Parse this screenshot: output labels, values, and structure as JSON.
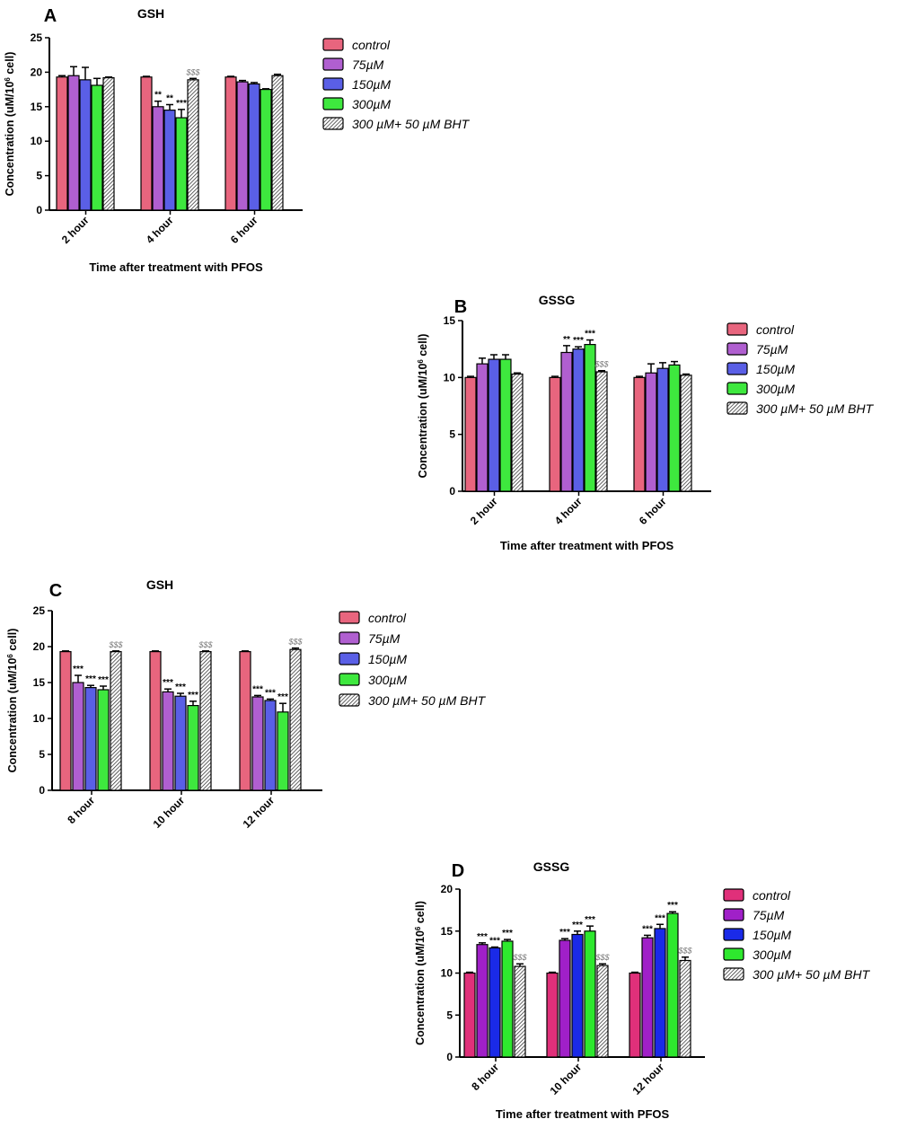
{
  "colors": {
    "control": "#e8657e",
    "75": "#b05fd0",
    "150": "#5a5fe6",
    "300": "#3ee83e",
    "bht": "#ffffff",
    "panelD_control": "#e0307a",
    "panelD_75": "#a020c8",
    "panelD_150": "#1a2ae8",
    "panelD_300": "#2ee82e",
    "axis": "#000000",
    "dollar": "#777777"
  },
  "chart_data": [
    {
      "panel": "A",
      "type": "bar",
      "title": "GSH",
      "xlabel": "Time after treatment with PFOS",
      "ylabel": "Concentration (uM/10",
      "ylabel_sup": "6",
      "ylabel_end": " cell)",
      "ylim": [
        0,
        25
      ],
      "yticks": [
        "0",
        "5",
        "10",
        "15",
        "20",
        "25"
      ],
      "ytick_values": [
        0,
        5,
        10,
        15,
        20,
        25
      ],
      "categories": [
        "2 hour",
        "4 hour",
        "6 hour"
      ],
      "legend": [
        "control",
        "75µM",
        "150µM",
        "300µM",
        "300 µM+ 50 µM BHT"
      ],
      "series": [
        {
          "name": "control",
          "values": [
            19.3,
            19.3,
            19.3
          ],
          "errors": [
            0.2,
            0.1,
            0.1
          ],
          "marks": [
            "",
            "",
            ""
          ]
        },
        {
          "name": "75µM",
          "values": [
            19.5,
            15.0,
            18.6
          ],
          "errors": [
            1.3,
            0.8,
            0.2
          ],
          "marks": [
            "",
            "**",
            ""
          ]
        },
        {
          "name": "150µM",
          "values": [
            18.9,
            14.5,
            18.3
          ],
          "errors": [
            1.8,
            0.8,
            0.2
          ],
          "marks": [
            "",
            "**",
            ""
          ]
        },
        {
          "name": "300µM",
          "values": [
            18.1,
            13.4,
            17.5
          ],
          "errors": [
            1.0,
            1.2,
            0.1
          ],
          "marks": [
            "",
            "***",
            ""
          ]
        },
        {
          "name": "300 µM+ 50 µM BHT",
          "values": [
            19.2,
            18.9,
            19.5
          ],
          "errors": [
            0.1,
            0.2,
            0.2
          ],
          "marks": [
            "",
            "$$$",
            ""
          ]
        }
      ]
    },
    {
      "panel": "B",
      "type": "bar",
      "title": "GSSG",
      "xlabel": "Time after treatment with PFOS",
      "ylabel": "Concentration (uM/10",
      "ylabel_sup": "6",
      "ylabel_end": " cell)",
      "ylim": [
        0,
        15
      ],
      "yticks": [
        "0",
        "5",
        "10",
        "15"
      ],
      "ytick_values": [
        0,
        5,
        10,
        15
      ],
      "categories": [
        "2 hour",
        "4 hour",
        "6 hour"
      ],
      "legend": [
        "control",
        "75µM",
        "150µM",
        "300µM",
        "300 µM+ 50 µM BHT"
      ],
      "series": [
        {
          "name": "control",
          "values": [
            10.0,
            10.0,
            10.0
          ],
          "errors": [
            0.1,
            0.1,
            0.1
          ],
          "marks": [
            "",
            "",
            ""
          ]
        },
        {
          "name": "75µM",
          "values": [
            11.2,
            12.2,
            10.4
          ],
          "errors": [
            0.5,
            0.6,
            0.8
          ],
          "marks": [
            "",
            "**",
            ""
          ]
        },
        {
          "name": "150µM",
          "values": [
            11.6,
            12.5,
            10.8
          ],
          "errors": [
            0.4,
            0.2,
            0.5
          ],
          "marks": [
            "",
            "***",
            ""
          ]
        },
        {
          "name": "300µM",
          "values": [
            11.6,
            12.9,
            11.1
          ],
          "errors": [
            0.4,
            0.4,
            0.3
          ],
          "marks": [
            "",
            "***",
            ""
          ]
        },
        {
          "name": "300 µM+ 50 µM BHT",
          "values": [
            10.3,
            10.5,
            10.2
          ],
          "errors": [
            0.1,
            0.1,
            0.1
          ],
          "marks": [
            "",
            "$$$",
            ""
          ]
        }
      ]
    },
    {
      "panel": "C",
      "type": "bar",
      "title": "GSH",
      "xlabel": "",
      "ylabel": "Concentration (uM/10",
      "ylabel_sup": "6",
      "ylabel_end": " cell)",
      "ylim": [
        0,
        25
      ],
      "yticks": [
        "0",
        "5",
        "10",
        "15",
        "20",
        "25"
      ],
      "ytick_values": [
        0,
        5,
        10,
        15,
        20,
        25
      ],
      "categories": [
        "8 hour",
        "10 hour",
        "12 hour"
      ],
      "legend": [
        "control",
        "75µM",
        "150µM",
        "300µM",
        "300 µM+ 50 µM BHT"
      ],
      "series": [
        {
          "name": "control",
          "values": [
            19.3,
            19.3,
            19.3
          ],
          "errors": [
            0.1,
            0.1,
            0.1
          ],
          "marks": [
            "",
            "",
            ""
          ]
        },
        {
          "name": "75µM",
          "values": [
            15.0,
            13.7,
            13.0
          ],
          "errors": [
            1.0,
            0.4,
            0.2
          ],
          "marks": [
            "***",
            "***",
            "***"
          ]
        },
        {
          "name": "150µM",
          "values": [
            14.3,
            13.1,
            12.5
          ],
          "errors": [
            0.3,
            0.4,
            0.2
          ],
          "marks": [
            "***",
            "***",
            "***"
          ]
        },
        {
          "name": "300µM",
          "values": [
            14.0,
            11.8,
            10.9
          ],
          "errors": [
            0.5,
            0.6,
            1.2
          ],
          "marks": [
            "***",
            "***",
            "***"
          ]
        },
        {
          "name": "300 µM+ 50 µM BHT",
          "values": [
            19.3,
            19.3,
            19.6
          ],
          "errors": [
            0.1,
            0.1,
            0.2
          ],
          "marks": [
            "$$$",
            "$$$",
            "$$$"
          ]
        }
      ]
    },
    {
      "panel": "D",
      "type": "bar",
      "title": "GSSG",
      "xlabel": "Time after treatment with PFOS",
      "ylabel": "Concentration (uM/10",
      "ylabel_sup": "6",
      "ylabel_end": " cell)",
      "ylim": [
        0,
        20
      ],
      "yticks": [
        "0",
        "5",
        "10",
        "15",
        "20"
      ],
      "ytick_values": [
        0,
        5,
        10,
        15,
        20
      ],
      "categories": [
        "8 hour",
        "10 hour",
        "12 hour"
      ],
      "legend": [
        "control",
        "75µM",
        "150µM",
        "300µM",
        "300 µM+ 50 µM BHT"
      ],
      "series": [
        {
          "name": "control",
          "values": [
            10.0,
            10.0,
            10.0
          ],
          "errors": [
            0.1,
            0.1,
            0.1
          ],
          "marks": [
            "",
            "",
            ""
          ]
        },
        {
          "name": "75µM",
          "values": [
            13.4,
            13.9,
            14.2
          ],
          "errors": [
            0.2,
            0.2,
            0.3
          ],
          "marks": [
            "***",
            "***",
            "***"
          ]
        },
        {
          "name": "150µM",
          "values": [
            13.0,
            14.6,
            15.3
          ],
          "errors": [
            0.1,
            0.4,
            0.5
          ],
          "marks": [
            "***",
            "***",
            "***"
          ]
        },
        {
          "name": "300µM",
          "values": [
            13.8,
            15.0,
            17.1
          ],
          "errors": [
            0.2,
            0.6,
            0.2
          ],
          "marks": [
            "***",
            "***",
            "***"
          ]
        },
        {
          "name": "300 µM+ 50 µM BHT",
          "values": [
            10.8,
            10.9,
            11.5
          ],
          "errors": [
            0.3,
            0.2,
            0.4
          ],
          "marks": [
            "$$$",
            "$$$",
            "$$$"
          ]
        }
      ]
    }
  ]
}
